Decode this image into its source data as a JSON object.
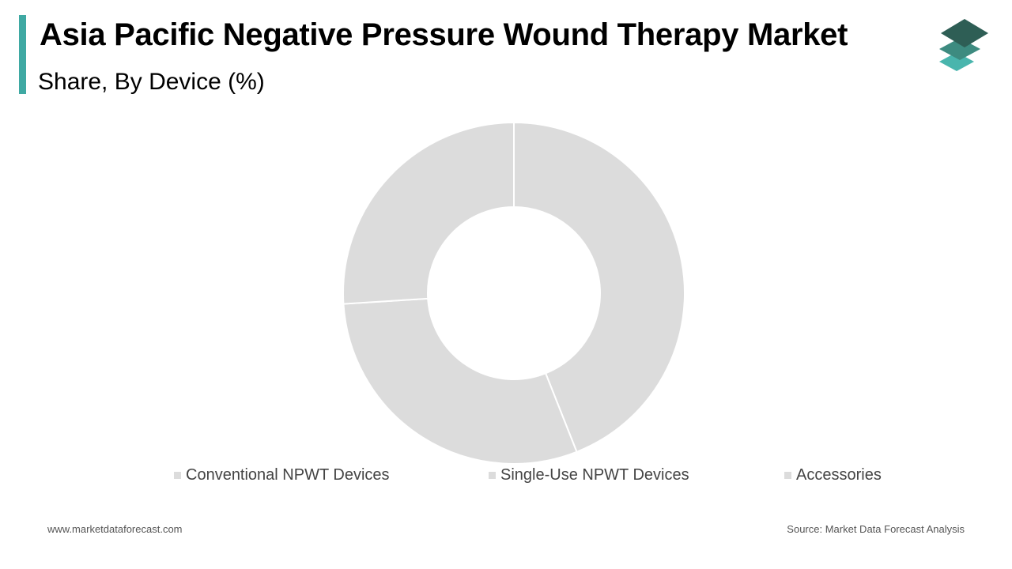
{
  "header": {
    "title": "Asia Pacific Negative Pressure Wound Therapy Market",
    "subtitle": "Share, By Device (%)",
    "accent_color": "#3fa9a3"
  },
  "logo": {
    "icon": "stacked-layers-logo-icon",
    "colors": [
      "#2e5e55",
      "#3d8b80",
      "#49b5ad"
    ]
  },
  "chart_data": {
    "type": "pie",
    "title": "Share, By Device (%)",
    "donut": true,
    "categories": [
      "Conventional NPWT Devices",
      "Single-Use NPWT Devices",
      "Accessories"
    ],
    "values": [
      44,
      30,
      26
    ],
    "colors": [
      "#dcdcdc",
      "#dcdcdc",
      "#dcdcdc"
    ],
    "legend": "bottom"
  },
  "footer": {
    "website": "www.marketdataforecast.com",
    "source": "Source: Market Data Forecast Analysis"
  }
}
